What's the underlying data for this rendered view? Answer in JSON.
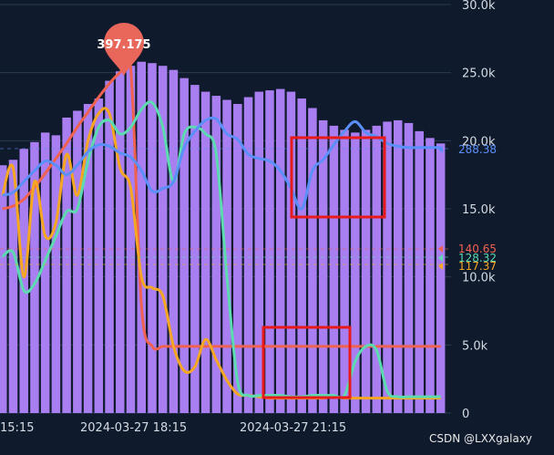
{
  "chart_data": {
    "type": "bar",
    "title": "",
    "xlabel": "",
    "ylabel": "",
    "x_tick_labels": [
      "15:15",
      "2024-03-27 18:15",
      "2024-03-27 21:15"
    ],
    "y_ticks": [
      0,
      5000,
      10000,
      15000,
      20000,
      25000,
      30000
    ],
    "y_tick_labels": [
      "0",
      "5.0k",
      "10.0k",
      "15.0k",
      "20.0k",
      "25.0k",
      "30.0k"
    ],
    "ylim": [
      0,
      30000
    ],
    "grid": true,
    "bar_color": "#a97ef0",
    "bars": {
      "values": [
        18200,
        18600,
        19400,
        19900,
        20600,
        20400,
        21700,
        22200,
        22700,
        23100,
        24400,
        25100,
        25500,
        25800,
        25700,
        25500,
        25200,
        24600,
        24100,
        23600,
        23300,
        23000,
        22700,
        23200,
        23600,
        23700,
        23800,
        23600,
        23100,
        22400,
        21500,
        21100,
        20800,
        20600,
        20800,
        21100,
        21400,
        21500,
        21300,
        20700,
        20200,
        19800
      ]
    },
    "line_series": [
      {
        "color": "#f0614f",
        "values": [
          15000,
          15200,
          15700,
          16600,
          17600,
          18700,
          19800,
          21000,
          22100,
          23200,
          24200,
          25000,
          25300,
          7900,
          4900,
          4900,
          4900,
          4900,
          4900,
          4900,
          4900,
          4900,
          4900,
          4900,
          4900,
          4900,
          4900,
          4900,
          4900,
          4900,
          4900,
          4900,
          4900,
          4900,
          4900,
          4900,
          4900,
          4900,
          4900,
          4900,
          4900,
          4900
        ]
      },
      {
        "color": "#f5a623",
        "values": [
          16000,
          18000,
          10000,
          17000,
          13000,
          14000,
          19000,
          16000,
          20000,
          22000,
          22000,
          18000,
          16500,
          10000,
          9200,
          8600,
          4900,
          3100,
          3400,
          5400,
          3900,
          2400,
          1400,
          1300,
          1200,
          1100,
          1100,
          1100,
          1100,
          1100,
          1100,
          1200,
          1100,
          1100,
          1100,
          1100,
          1100,
          1100,
          1100,
          1100,
          1100,
          1100
        ]
      },
      {
        "color": "#5cdbb0",
        "values": [
          11500,
          11800,
          9000,
          9500,
          11200,
          13000,
          14800,
          15000,
          18500,
          21000,
          21500,
          20500,
          21000,
          22300,
          22800,
          21000,
          17000,
          20500,
          21000,
          20500,
          19000,
          10000,
          2300,
          1300,
          1300,
          1300,
          1300,
          1200,
          1200,
          1300,
          1300,
          1300,
          1300,
          3800,
          4900,
          4600,
          1600,
          1200,
          1200,
          1200,
          1200,
          1200
        ]
      },
      {
        "color": "#5b8ff9",
        "values": [
          16000,
          16200,
          17000,
          17800,
          18500,
          18200,
          17500,
          18200,
          19200,
          19700,
          19600,
          19100,
          18800,
          17800,
          16300,
          16500,
          17000,
          19500,
          20700,
          21500,
          21600,
          20500,
          20100,
          19000,
          18700,
          18500,
          17800,
          16500,
          15000,
          17800,
          18600,
          19700,
          20700,
          21400,
          20600,
          20300,
          19800,
          19600,
          19500,
          19500,
          19500,
          19500
        ]
      }
    ],
    "right_labels": [
      {
        "text": "288.38",
        "color": "#5b8ff9"
      },
      {
        "text": "140.65",
        "color": "#f0614f"
      },
      {
        "text": "128.32",
        "color": "#5cdbb0"
      },
      {
        "text": "117.37",
        "color": "#f5a623"
      }
    ],
    "annotation": {
      "text": "397.175",
      "color": "#e8665a"
    },
    "highlight_box_color": "#e8191b"
  },
  "watermark": "CSDN @LXXgalaxy"
}
